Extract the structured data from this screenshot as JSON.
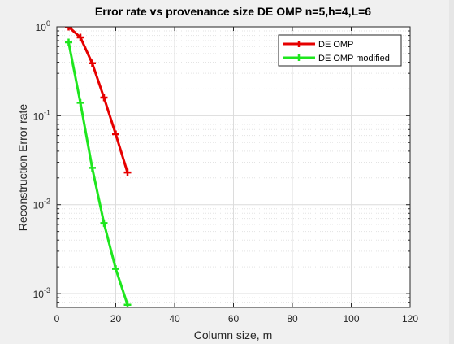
{
  "chart_data": {
    "type": "line",
    "title": "Error rate vs provenance size DE OMP n=5,h=4,L=6",
    "xlabel": "Column size, m",
    "ylabel": "Reconstruction Error rate",
    "xlim": [
      0,
      120
    ],
    "ylim": [
      0.0007,
      1.0
    ],
    "yscale": "log",
    "grid": true,
    "minor_grid": true,
    "legend_position": "top-right",
    "xticks": [
      0,
      20,
      40,
      60,
      80,
      100,
      120
    ],
    "yticks": [
      {
        "value": 1,
        "base": "10",
        "exp": "0"
      },
      {
        "value": 0.1,
        "base": "10",
        "exp": "-1"
      },
      {
        "value": 0.01,
        "base": "10",
        "exp": "-2"
      },
      {
        "value": 0.001,
        "base": "10",
        "exp": "-3"
      }
    ],
    "series": [
      {
        "name": "DE OMP",
        "color": "#e60000",
        "marker": "plus",
        "x": [
          4,
          8,
          12,
          16,
          20,
          24
        ],
        "y": [
          1.0,
          0.76,
          0.39,
          0.16,
          0.062,
          0.023
        ]
      },
      {
        "name": "DE OMP modified",
        "color": "#1ee61e",
        "marker": "plus",
        "x": [
          4,
          8,
          12,
          16,
          20,
          24
        ],
        "y": [
          0.67,
          0.14,
          0.026,
          0.0062,
          0.0019,
          0.00075
        ]
      }
    ]
  }
}
